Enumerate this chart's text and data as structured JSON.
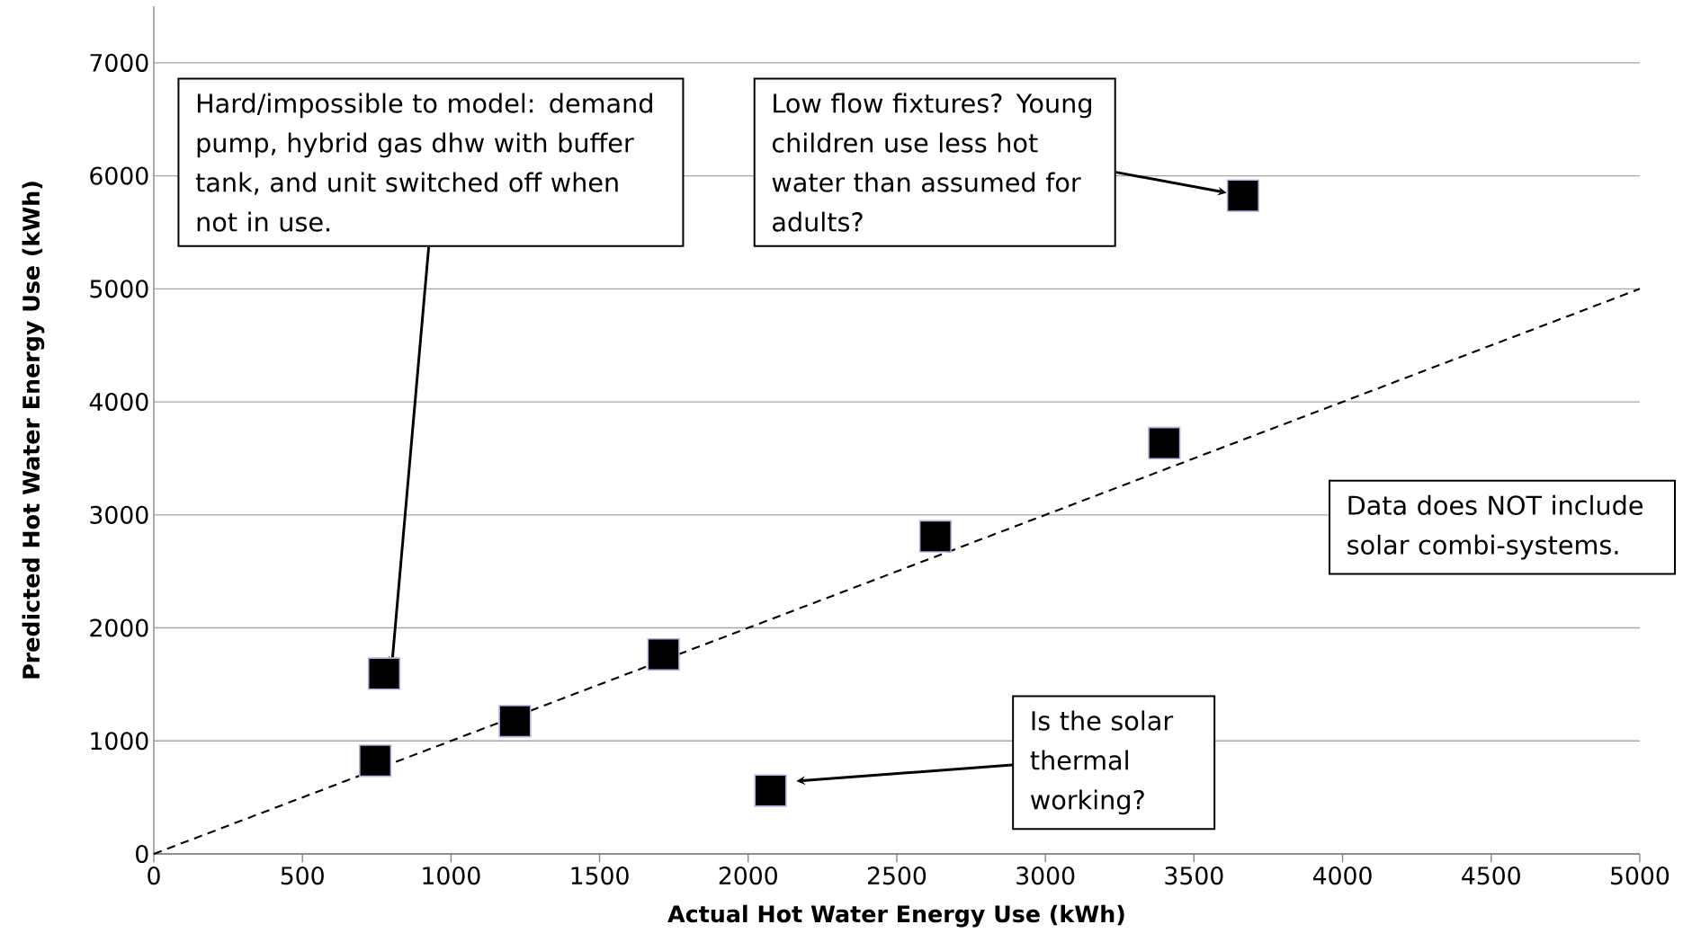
{
  "chart_data": {
    "type": "scatter",
    "xlabel": "Actual Hot Water Energy Use (kWh)",
    "ylabel": "Predicted Hot Water Energy Use (kWh)",
    "xlim": [
      0,
      5000
    ],
    "xticks": [
      0,
      500,
      1000,
      1500,
      2000,
      2500,
      3000,
      3500,
      4000,
      4500,
      5000
    ],
    "ylim": [
      0,
      7500
    ],
    "yticks": [
      0,
      1000,
      2000,
      3000,
      4000,
      5000,
      6000,
      7000
    ],
    "grid": "y",
    "series": [
      {
        "color": "#000000",
        "marker": "square",
        "x": [
          745,
          775,
          1215,
          1715,
          2075,
          2630,
          3400,
          3665
        ],
        "values": [
          825,
          1595,
          1175,
          1765,
          560,
          2810,
          3635,
          5825
        ]
      },
      {
        "type": "line",
        "color": "#000000",
        "line_style": "dashed",
        "marker": "none",
        "x": [
          0,
          5000
        ],
        "values": [
          0,
          5000
        ]
      }
    ],
    "annotations": [
      "Hard/impossible to model: demand pump, hybrid gas dhw with buffer tank, and unit switched off when not in use.",
      "Low flow fixtures? Young children use less hot water than assumed for adults?",
      "Data does NOT include solar combi-systems.",
      "Is the solar thermal working?"
    ]
  }
}
